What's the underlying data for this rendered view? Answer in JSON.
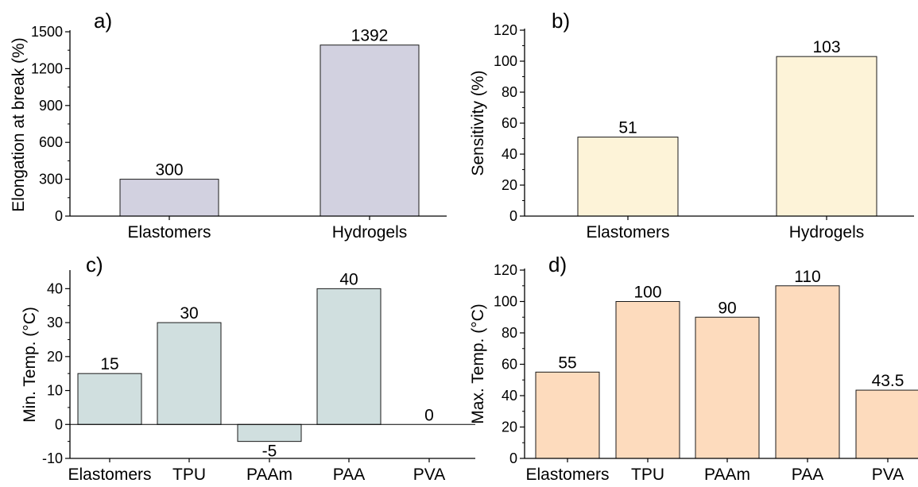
{
  "figure": {
    "colors": {
      "axis": "#000000",
      "bar_edge": "#1a1a1a"
    }
  },
  "chart_data": [
    {
      "panel_label": "a)",
      "type": "bar",
      "categories": [
        "Elastomers",
        "Hydrogels"
      ],
      "values": [
        300,
        1392
      ],
      "value_labels": [
        "300",
        "1392"
      ],
      "xlabel": "",
      "ylabel": "Elongation at break (%)",
      "ylim": [
        0,
        1500
      ],
      "yticks": [
        0,
        300,
        600,
        900,
        1200,
        1500
      ],
      "minor_ticks": true,
      "bar_color": "#d2d1e0",
      "grid": false
    },
    {
      "panel_label": "b)",
      "type": "bar",
      "categories": [
        "Elastomers",
        "Hydrogels"
      ],
      "values": [
        51,
        103
      ],
      "value_labels": [
        "51",
        "103"
      ],
      "xlabel": "",
      "ylabel": "Sensitivity (%)",
      "ylim": [
        0,
        120
      ],
      "yticks": [
        0,
        20,
        40,
        60,
        80,
        100,
        120
      ],
      "minor_ticks": true,
      "bar_color": "#fdf3d8",
      "grid": false
    },
    {
      "panel_label": "c)",
      "type": "bar",
      "categories": [
        "Elastomers",
        "TPU",
        "PAAm",
        "PAA",
        "PVA"
      ],
      "values": [
        15,
        30,
        -5,
        40,
        0
      ],
      "value_labels": [
        "15",
        "30",
        "-5",
        "40",
        "0"
      ],
      "xlabel": "",
      "ylabel": "Min. Temp. (°C)",
      "ylim": [
        -10,
        45
      ],
      "yticks": [
        -10,
        0,
        10,
        20,
        30,
        40
      ],
      "minor_ticks": true,
      "zero_line": true,
      "bar_color": "#d0dfdf",
      "grid": false
    },
    {
      "panel_label": "d)",
      "type": "bar",
      "categories": [
        "Elastomers",
        "TPU",
        "PAAm",
        "PAA",
        "PVA"
      ],
      "values": [
        55,
        100,
        90,
        110,
        43.5
      ],
      "value_labels": [
        "55",
        "100",
        "90",
        "110",
        "43.5"
      ],
      "xlabel": "",
      "ylabel": "Max. Temp. (°C)",
      "ylim": [
        0,
        120
      ],
      "yticks": [
        0,
        20,
        40,
        60,
        80,
        100,
        120
      ],
      "minor_ticks": true,
      "bar_color": "#fddbbd",
      "grid": false
    }
  ]
}
